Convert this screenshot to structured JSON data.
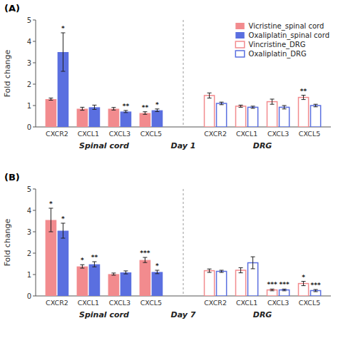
{
  "chart_data": [
    {
      "type": "bar",
      "title": "(A)",
      "y_label": "Fold change",
      "categories": [
        "CXCR2",
        "CXCL1",
        "CXCL3",
        "CXCL5",
        "CXCR2",
        "CXCL1",
        "CXCL3",
        "CXCL5"
      ],
      "series": [
        {
          "name": "Vicristine_spinal cord",
          "color": "#F28B8E",
          "marker": "filled",
          "values": [
            1.3,
            0.85,
            0.85,
            0.65,
            null,
            null,
            null,
            null
          ],
          "errors": [
            0.05,
            0.07,
            0.06,
            0.06,
            null,
            null,
            null,
            null
          ],
          "significance": [
            null,
            null,
            null,
            "**",
            null,
            null,
            null,
            null
          ]
        },
        {
          "name": "Oxaliplatin_spinal cord",
          "color": "#5A6FE0",
          "marker": "filled",
          "values": [
            3.5,
            0.92,
            0.72,
            0.78,
            null,
            null,
            null,
            null
          ],
          "errors": [
            0.9,
            0.1,
            0.05,
            0.06,
            null,
            null,
            null,
            null
          ],
          "significance": [
            "*",
            null,
            "**",
            "*",
            null,
            null,
            null,
            null
          ]
        },
        {
          "name": "Vincristine_DRG",
          "color": "#F28B8E",
          "marker": "open",
          "values": [
            null,
            null,
            null,
            null,
            1.47,
            0.97,
            1.18,
            1.38
          ],
          "errors": [
            null,
            null,
            null,
            null,
            0.12,
            0.05,
            0.12,
            0.1
          ],
          "significance": [
            null,
            null,
            null,
            null,
            null,
            null,
            null,
            "**"
          ]
        },
        {
          "name": "Oxaliplatin_DRG",
          "color": "#5A6FE0",
          "marker": "open",
          "values": [
            null,
            null,
            null,
            null,
            1.1,
            0.92,
            0.92,
            1.0
          ],
          "errors": [
            null,
            null,
            null,
            null,
            0.06,
            0.05,
            0.08,
            0.06
          ],
          "significance": [
            null,
            null,
            null,
            null,
            null,
            null,
            null,
            null
          ]
        }
      ],
      "annotations": [
        "Spinal cord",
        "Day 1",
        "DRG"
      ],
      "ylim": [
        0,
        5
      ],
      "yticks": [
        0,
        1,
        2,
        3,
        4,
        5
      ],
      "grid": false,
      "legend": "upper right"
    },
    {
      "type": "bar",
      "title": "(B)",
      "y_label": "Fold change",
      "categories": [
        "CXCR2",
        "CXCL1",
        "CXCL3",
        "CXCL5",
        "CXCR2",
        "CXCL1",
        "CXCL3",
        "CXCL5"
      ],
      "series": [
        {
          "name": "Vicristine_spinal cord",
          "color": "#F28B8E",
          "marker": "filled",
          "values": [
            3.55,
            1.38,
            1.02,
            1.68,
            null,
            null,
            null,
            null
          ],
          "errors": [
            0.55,
            0.08,
            0.05,
            0.12,
            null,
            null,
            null,
            null
          ],
          "significance": [
            "*",
            "*",
            null,
            "***",
            null,
            null,
            null,
            null
          ]
        },
        {
          "name": "Oxaliplatin_spinal cord",
          "color": "#5A6FE0",
          "marker": "filled",
          "values": [
            3.05,
            1.48,
            1.1,
            1.12,
            null,
            null,
            null,
            null
          ],
          "errors": [
            0.35,
            0.12,
            0.07,
            0.08,
            null,
            null,
            null,
            null
          ],
          "significance": [
            "*",
            "**",
            null,
            "*",
            null,
            null,
            null,
            null
          ]
        },
        {
          "name": "Vincristine_DRG",
          "color": "#F28B8E",
          "marker": "open",
          "values": [
            null,
            null,
            null,
            null,
            1.18,
            1.2,
            0.28,
            0.58
          ],
          "errors": [
            null,
            null,
            null,
            null,
            0.08,
            0.12,
            0.04,
            0.1
          ],
          "significance": [
            null,
            null,
            null,
            null,
            null,
            null,
            "***",
            "*"
          ]
        },
        {
          "name": "Oxaliplatin_DRG",
          "color": "#5A6FE0",
          "marker": "open",
          "values": [
            null,
            null,
            null,
            null,
            1.15,
            1.55,
            0.28,
            0.25
          ],
          "errors": [
            null,
            null,
            null,
            null,
            0.05,
            0.28,
            0.04,
            0.05
          ],
          "significance": [
            null,
            null,
            null,
            null,
            null,
            null,
            "***",
            "***"
          ]
        }
      ],
      "annotations": [
        "Spinal cord",
        "Day 7",
        "DRG"
      ],
      "ylim": [
        0,
        5
      ],
      "yticks": [
        0,
        1,
        2,
        3,
        4,
        5
      ],
      "grid": false,
      "legend": false
    }
  ]
}
